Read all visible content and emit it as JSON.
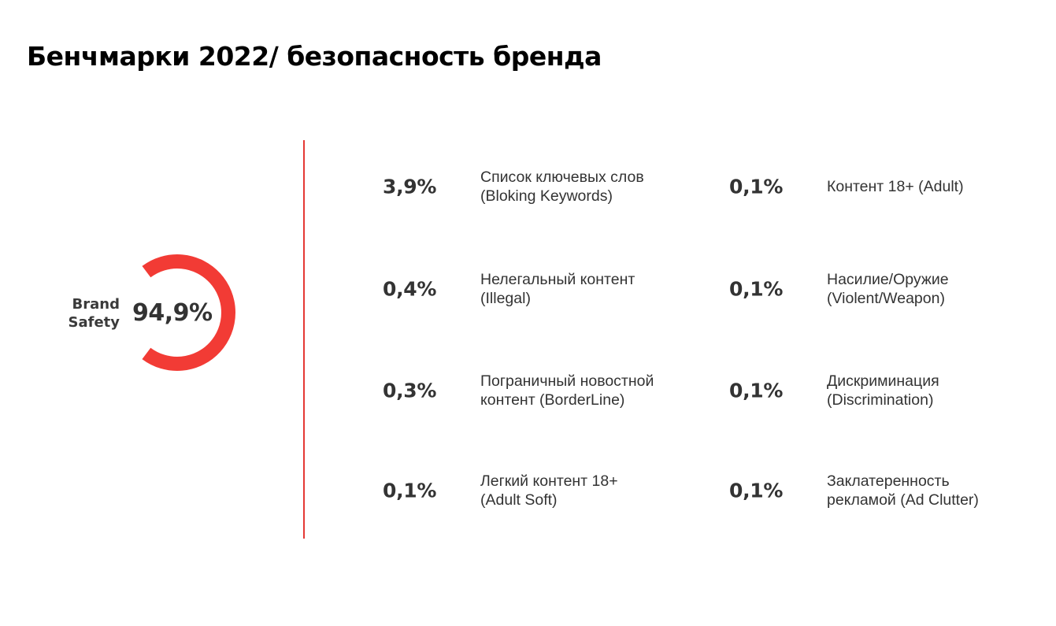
{
  "title": "Бенчмарки 2022/ безопасность бренда",
  "gauge": {
    "label_line1": "Brand",
    "label_line2": "Safety",
    "value_text": "94,9%",
    "value": 94.9,
    "color": "#f23b35"
  },
  "accent_color": "#e53935",
  "metrics_left": [
    {
      "value": "3,9%",
      "line1": "Список ключевых слов",
      "line2": "(Bloking Keywords)"
    },
    {
      "value": "0,4%",
      "line1": "Нелегальный контент",
      "line2": "(Illegal)"
    },
    {
      "value": "0,3%",
      "line1": "Пограничный новостной",
      "line2": "контент (BorderLine)"
    },
    {
      "value": "0,1%",
      "line1": "Легкий контент 18+",
      "line2": "(Adult Soft)"
    }
  ],
  "metrics_right": [
    {
      "value": "0,1%",
      "line1": "Контент 18+ (Adult)",
      "line2": ""
    },
    {
      "value": "0,1%",
      "line1": "Насилие/Оружие",
      "line2": "(Violent/Weapon)"
    },
    {
      "value": "0,1%",
      "line1": "Дискриминация",
      "line2": "(Discrimination)"
    },
    {
      "value": "0,1%",
      "line1": "Заклатеренность",
      "line2": "рекламой (Ad Clutter)"
    }
  ]
}
